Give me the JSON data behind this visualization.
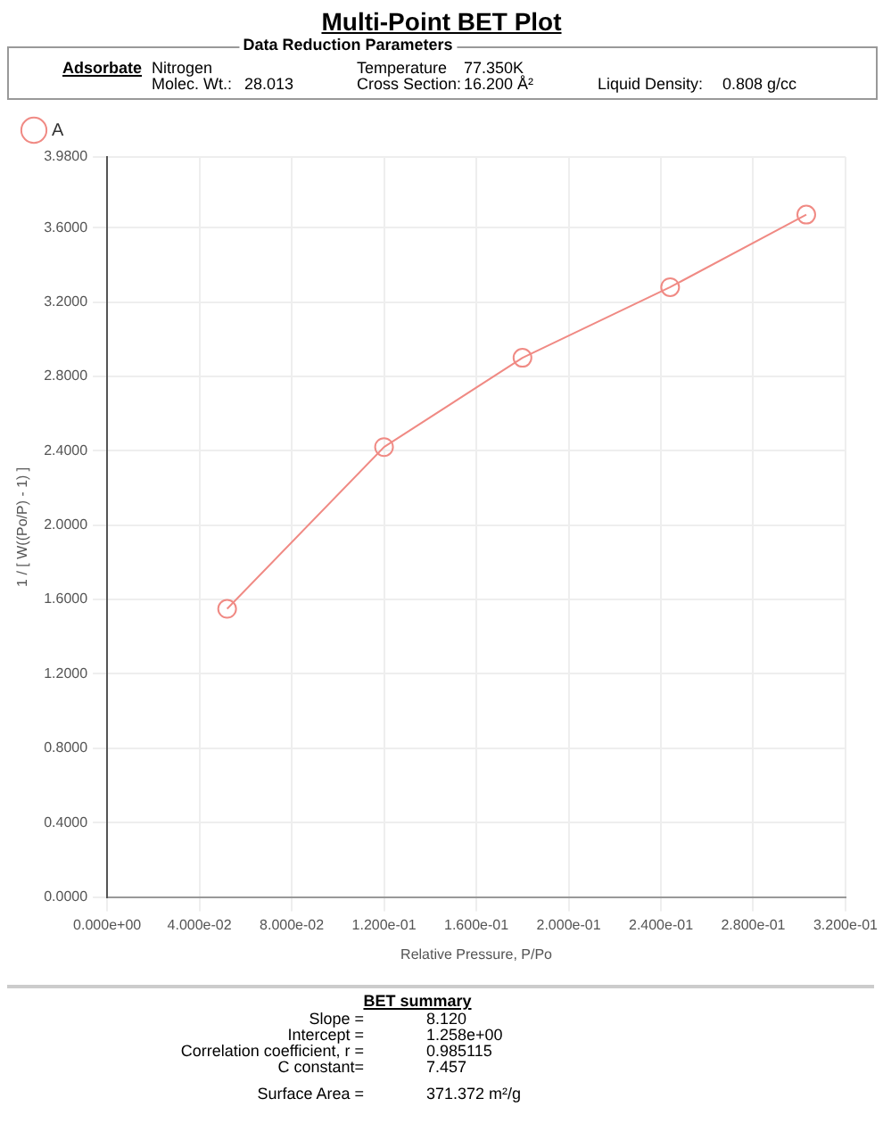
{
  "chart_data": {
    "type": "line",
    "title": "Multi-Point BET Plot",
    "xlabel": "Relative Pressure, P/Po",
    "ylabel": "1 / [ W((Po/P) - 1) ]",
    "x": [
      0.052,
      0.12,
      0.18,
      0.244,
      0.303
    ],
    "series": [
      {
        "name": "A",
        "color": "#f08a84",
        "values": [
          1.55,
          2.42,
          2.9,
          3.28,
          3.67
        ]
      }
    ],
    "xlim": [
      0,
      0.32
    ],
    "xticks": [
      {
        "value": 0,
        "label": "0.000e+00"
      },
      {
        "value": 0.04,
        "label": "4.000e-02"
      },
      {
        "value": 0.08,
        "label": "8.000e-02"
      },
      {
        "value": 0.12,
        "label": "1.200e-01"
      },
      {
        "value": 0.16,
        "label": "1.600e-01"
      },
      {
        "value": 0.2,
        "label": "2.000e-01"
      },
      {
        "value": 0.24,
        "label": "2.400e-01"
      },
      {
        "value": 0.28,
        "label": "2.800e-01"
      },
      {
        "value": 0.32,
        "label": "3.200e-01"
      }
    ],
    "ylim": [
      0,
      3.98
    ],
    "yticks": [
      {
        "value": 0,
        "label": "0.0000"
      },
      {
        "value": 0.4,
        "label": "0.4000"
      },
      {
        "value": 0.8,
        "label": "0.8000"
      },
      {
        "value": 1.2,
        "label": "1.2000"
      },
      {
        "value": 1.6,
        "label": "1.6000"
      },
      {
        "value": 2,
        "label": "2.0000"
      },
      {
        "value": 2.4,
        "label": "2.4000"
      },
      {
        "value": 2.8,
        "label": "2.8000"
      },
      {
        "value": 3.2,
        "label": "3.2000"
      },
      {
        "value": 3.6,
        "label": "3.6000"
      },
      {
        "value": 3.98,
        "label": "3.9800"
      }
    ],
    "grid": true,
    "legend": "top left",
    "marker": "circle",
    "line_style": "solid",
    "annotations": [
      "Data Reduction Parameters",
      "Adsorbate",
      "Nitrogen",
      "Molec. Wt.:",
      "28.013",
      "Temperature",
      "77.350K",
      "Cross Section:",
      "16.200 Å²",
      "Liquid Density:",
      "0.808 g/cc",
      "BET summary",
      "Slope =",
      "8.120",
      "Intercept =",
      "1.258e+00",
      "Correlation coefficient, r =",
      "0.985115",
      "C constant=",
      "7.457",
      "Surface Area =",
      "371.372 m²/g"
    ]
  }
}
